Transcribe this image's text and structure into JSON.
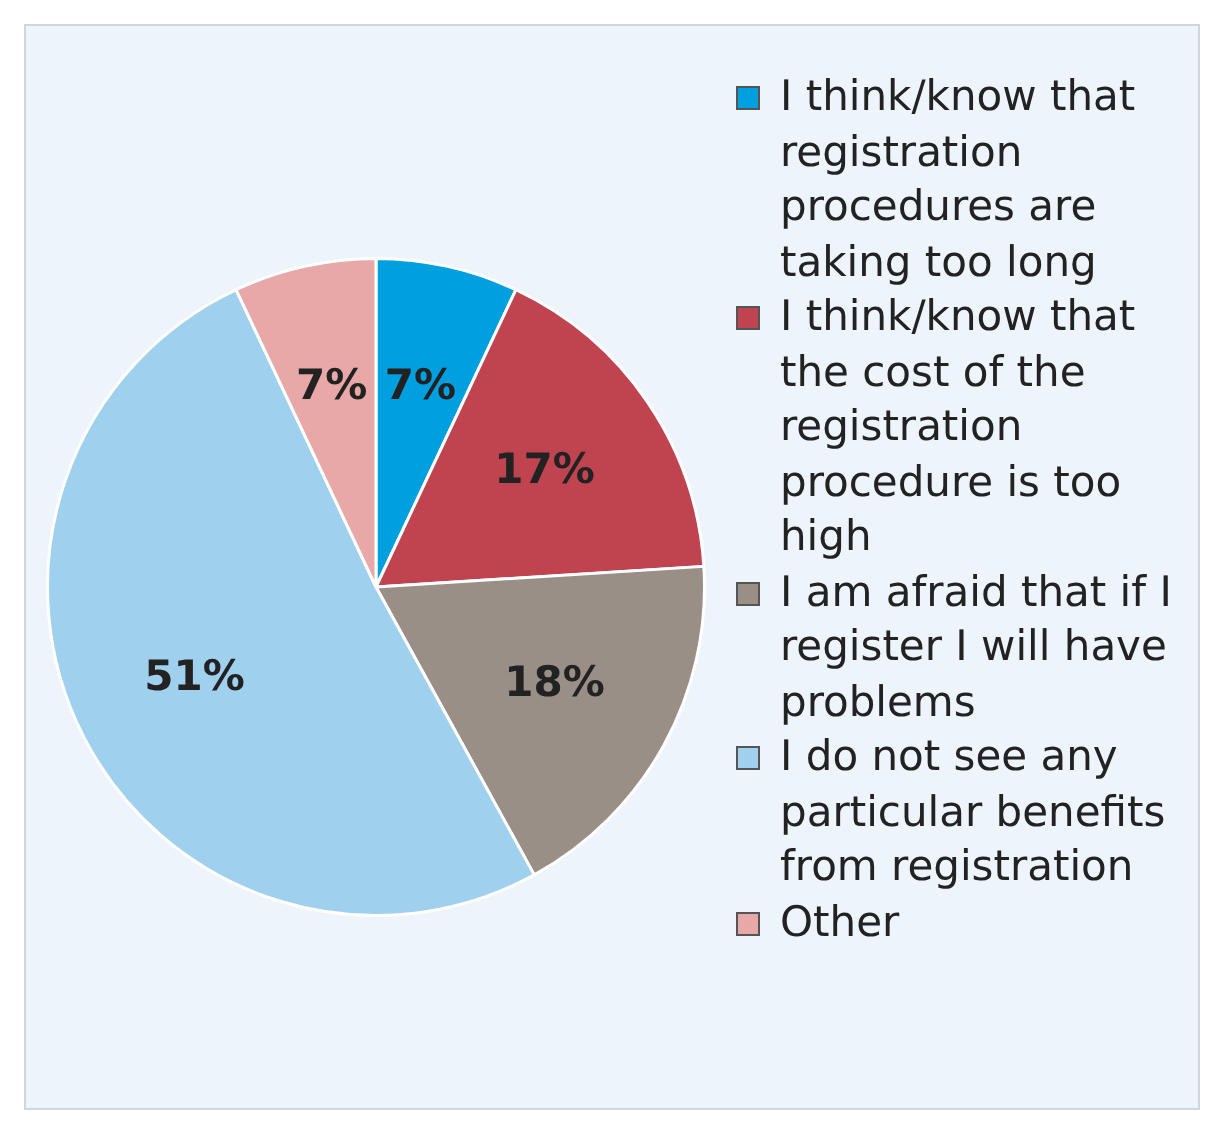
{
  "chart_data": {
    "type": "pie",
    "categories": [
      "I think/know that registration procedures are taking too long",
      "I think/know that the cost of the registration procedure is too high",
      "I am afraid that if I register I will have problems",
      "I do not see any particular benefits from registration",
      "Other"
    ],
    "values": [
      7,
      17,
      18,
      51,
      7
    ],
    "colors": [
      "#00a0e0",
      "#c0444f",
      "#9a8f87",
      "#9fd1ef",
      "#e8a8a8"
    ],
    "value_labels": [
      "7%",
      "17%",
      "18%",
      "51%",
      "7%"
    ],
    "legend": "right"
  }
}
